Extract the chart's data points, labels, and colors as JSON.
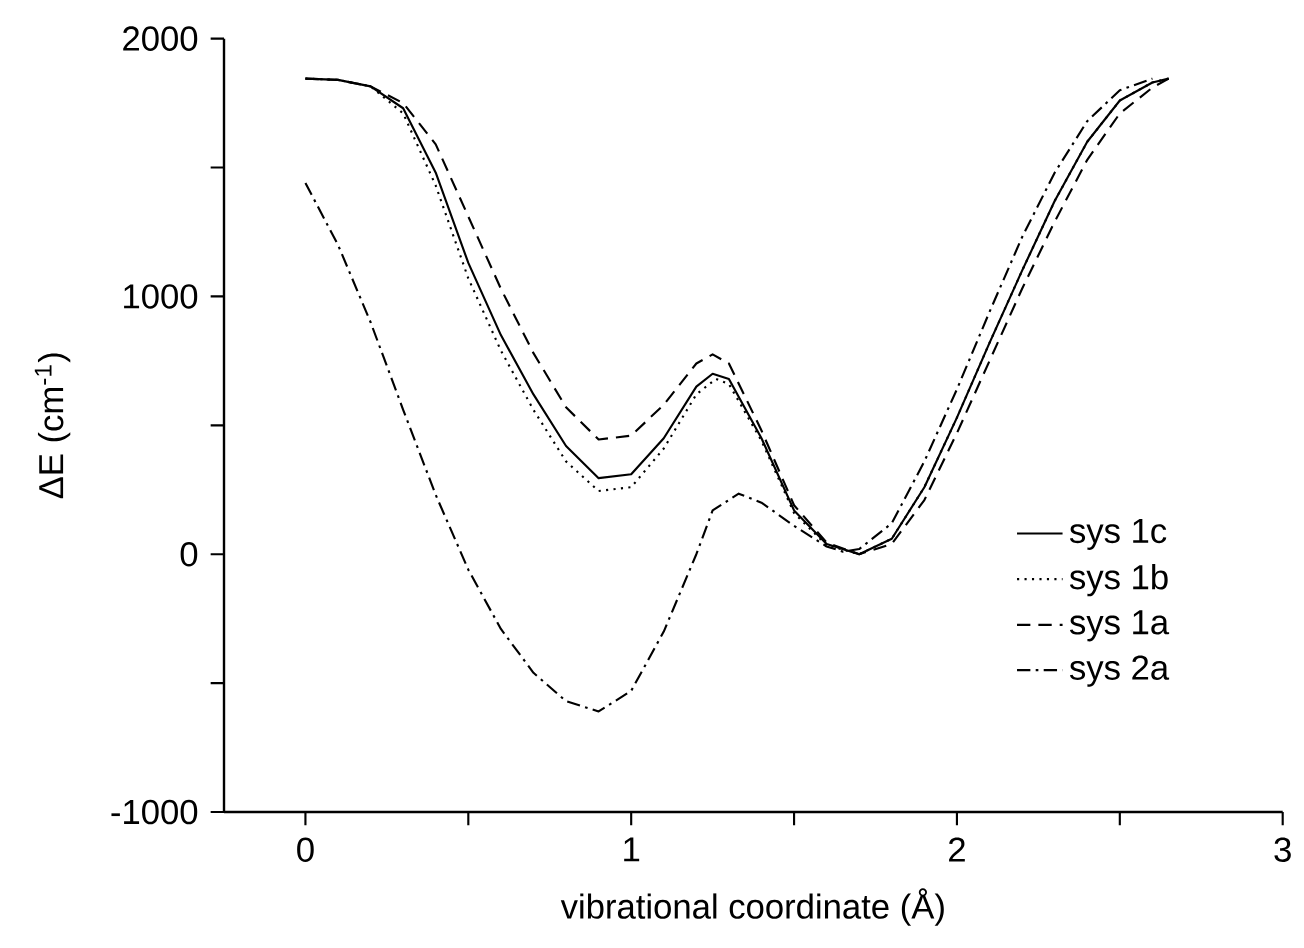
{
  "chart_data": {
    "type": "line",
    "xlabel": "vibrational coordinate (Å)",
    "ylabel": "ΔE (cm$^{-1}$)",
    "xlim": [
      -0.25,
      3
    ],
    "ylim": [
      -1000,
      2000
    ],
    "xticks": [
      0,
      {
        "value": 0.5,
        "label": null
      },
      1,
      {
        "value": 1.5,
        "label": null
      },
      2,
      {
        "value": 2.5,
        "label": null
      },
      3
    ],
    "yticks": [
      -1000,
      {
        "value": -500,
        "label": null
      },
      0,
      {
        "value": 500,
        "label": null
      },
      1000,
      {
        "value": 1500,
        "label": null
      },
      2000
    ],
    "grid": false,
    "legend": "right",
    "marker": "none",
    "series": [
      {
        "name": "sys 1c",
        "color": "#000000",
        "line_style": "solid",
        "x": [
          0,
          0.1,
          0.2,
          0.3,
          0.4,
          0.5,
          0.6,
          0.7,
          0.8,
          0.9,
          1.0,
          1.1,
          1.2,
          1.25,
          1.3,
          1.4,
          1.5,
          1.6,
          1.7,
          1.8,
          1.9,
          2.0,
          2.1,
          2.2,
          2.3,
          2.4,
          2.5,
          2.6,
          2.65
        ],
        "values": [
          1845,
          1840,
          1815,
          1730,
          1480,
          1130,
          850,
          620,
          420,
          295,
          310,
          450,
          650,
          700,
          680,
          450,
          170,
          40,
          0,
          60,
          260,
          530,
          820,
          1100,
          1370,
          1600,
          1760,
          1830,
          1845
        ]
      },
      {
        "name": "sys 1b",
        "color": "#000000",
        "line_style": "dotted",
        "x": [
          0,
          0.1,
          0.2,
          0.3,
          0.4,
          0.5,
          0.6,
          0.7,
          0.8,
          0.9,
          1.0,
          1.1,
          1.2,
          1.26,
          1.3,
          1.4,
          1.5,
          1.6,
          1.7,
          1.8,
          1.9,
          2.0,
          2.1,
          2.2,
          2.3,
          2.4,
          2.5,
          2.6,
          2.65
        ],
        "values": [
          1845,
          1840,
          1815,
          1710,
          1430,
          1070,
          790,
          560,
          360,
          245,
          260,
          410,
          620,
          680,
          660,
          440,
          160,
          35,
          0,
          60,
          260,
          530,
          820,
          1100,
          1370,
          1600,
          1760,
          1830,
          1845
        ]
      },
      {
        "name": "sys 1a",
        "color": "#000000",
        "line_style": "dashed",
        "x": [
          0,
          0.1,
          0.2,
          0.3,
          0.4,
          0.5,
          0.6,
          0.7,
          0.8,
          0.9,
          1.0,
          1.1,
          1.2,
          1.25,
          1.3,
          1.4,
          1.5,
          1.6,
          1.7,
          1.8,
          1.9,
          2.0,
          2.1,
          2.2,
          2.3,
          2.4,
          2.5,
          2.6,
          2.65
        ],
        "values": [
          1845,
          1840,
          1815,
          1750,
          1590,
          1310,
          1030,
          780,
          570,
          445,
          460,
          580,
          740,
          775,
          740,
          480,
          190,
          45,
          0,
          40,
          210,
          470,
          750,
          1030,
          1290,
          1530,
          1710,
          1810,
          1845
        ]
      },
      {
        "name": "sys 2a",
        "color": "#000000",
        "line_style": "dashdotted",
        "x": [
          0,
          0.1,
          0.2,
          0.3,
          0.4,
          0.5,
          0.6,
          0.7,
          0.8,
          0.9,
          1.0,
          1.1,
          1.2,
          1.25,
          1.33,
          1.4,
          1.5,
          1.6,
          1.65,
          1.7,
          1.8,
          1.9,
          2.0,
          2.1,
          2.2,
          2.3,
          2.4,
          2.5,
          2.6
        ],
        "values": [
          1440,
          1200,
          900,
          560,
          230,
          -60,
          -290,
          -460,
          -570,
          -610,
          -530,
          -300,
          0,
          170,
          235,
          200,
          110,
          30,
          10,
          20,
          120,
          360,
          640,
          940,
          1230,
          1480,
          1680,
          1800,
          1845
        ]
      }
    ]
  }
}
